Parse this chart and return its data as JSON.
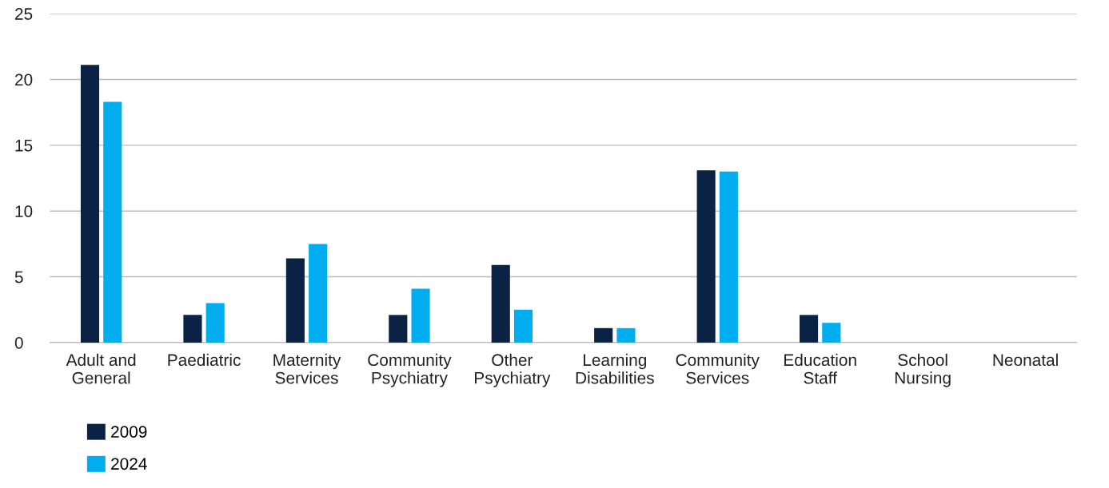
{
  "chart_data": {
    "type": "bar",
    "categories": [
      "Adult and General",
      "Paediatric",
      "Maternity Services",
      "Community Psychiatry",
      "Other Psychiatry",
      "Learning Disabilities",
      "Community Services",
      "Education Staff",
      "School Nursing",
      "Neonatal"
    ],
    "series": [
      {
        "name": "2009",
        "color": "#0a2244",
        "values": [
          21.1,
          2.1,
          6.4,
          2.1,
          5.9,
          1.1,
          13.1,
          2.1,
          0,
          0
        ]
      },
      {
        "name": "2024",
        "color": "#00aeef",
        "values": [
          18.3,
          3.0,
          7.5,
          4.1,
          2.5,
          1.1,
          13.0,
          1.5,
          0,
          0
        ]
      }
    ],
    "ylim": [
      0,
      25
    ],
    "yticks": [
      0,
      5,
      10,
      15,
      20,
      25
    ],
    "grid": "y",
    "legend": "bottom left"
  }
}
